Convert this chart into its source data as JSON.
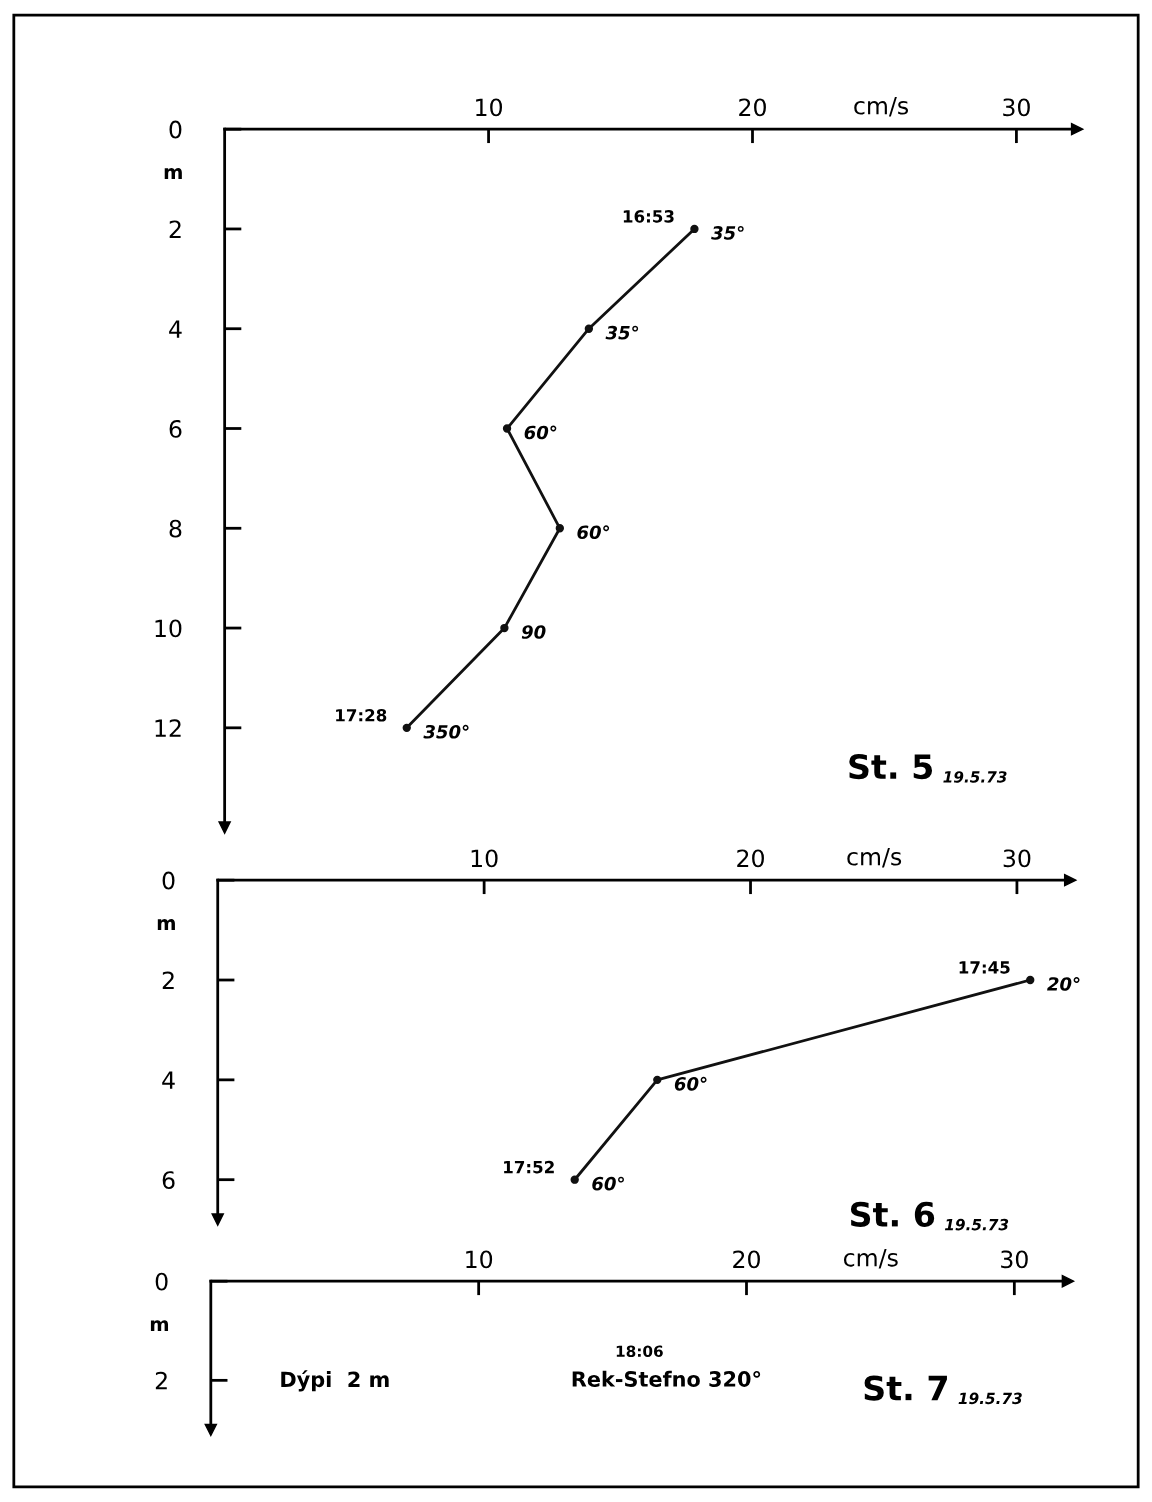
{
  "chart_data": [
    {
      "type": "line",
      "title": "St. 5",
      "subtitle": "19.5.73",
      "xlabel": "cm/s",
      "ylabel": "m",
      "x": [
        17.8,
        13.8,
        10.7,
        12.7,
        10.6,
        6.9
      ],
      "values": [
        2,
        4,
        6,
        8,
        10,
        12
      ],
      "color": "#111111",
      "marker": "circle",
      "line_style": "solid",
      "xlim": [
        0,
        32.3
      ],
      "xticks": [
        10,
        20,
        30
      ],
      "ylim": [
        14,
        0
      ],
      "yticks": [
        0,
        2,
        4,
        6,
        8,
        10,
        12
      ],
      "grid": false,
      "annotations": [
        {
          "text": "16:53",
          "x": 17.8,
          "y": 2
        },
        {
          "text": "35°",
          "x": 17.8,
          "y": 2
        },
        {
          "text": "35°",
          "x": 13.8,
          "y": 4
        },
        {
          "text": "60°",
          "x": 10.7,
          "y": 6
        },
        {
          "text": "60°",
          "x": 12.7,
          "y": 8
        },
        {
          "text": "90",
          "x": 10.6,
          "y": 10
        },
        {
          "text": "17:28",
          "x": 6.9,
          "y": 12
        },
        {
          "text": "350°",
          "x": 6.9,
          "y": 12
        }
      ]
    },
    {
      "type": "line",
      "title": "St. 6",
      "subtitle": "19.5.73",
      "xlabel": "cm/s",
      "ylabel": "m",
      "x": [
        30.5,
        16.5,
        13.4
      ],
      "values": [
        2,
        4,
        6
      ],
      "color": "#111111",
      "marker": "circle",
      "line_style": "solid",
      "xlim": [
        0,
        32
      ],
      "xticks": [
        10,
        20,
        30
      ],
      "ylim": [
        6.8,
        0
      ],
      "yticks": [
        0,
        2,
        4,
        6
      ],
      "grid": false,
      "annotations": [
        {
          "text": "17:45",
          "x": 30.5,
          "y": 2
        },
        {
          "text": "20°",
          "x": 30.5,
          "y": 2
        },
        {
          "text": "60°",
          "x": 16.5,
          "y": 4
        },
        {
          "text": "17:52",
          "x": 13.4,
          "y": 6
        },
        {
          "text": "60°",
          "x": 13.4,
          "y": 6
        }
      ]
    },
    {
      "type": "line",
      "title": "St. 7",
      "subtitle": "19.5.73",
      "xlabel": "cm/s",
      "ylabel": "m",
      "xlim": [
        0,
        32
      ],
      "xticks": [
        10,
        20,
        30
      ],
      "ylim": [
        3,
        0
      ],
      "yticks": [
        0,
        2
      ],
      "grid": false,
      "annotations": [
        "Dýpi  2 m",
        "18:06",
        "Rek-Stefno 320°"
      ]
    }
  ]
}
